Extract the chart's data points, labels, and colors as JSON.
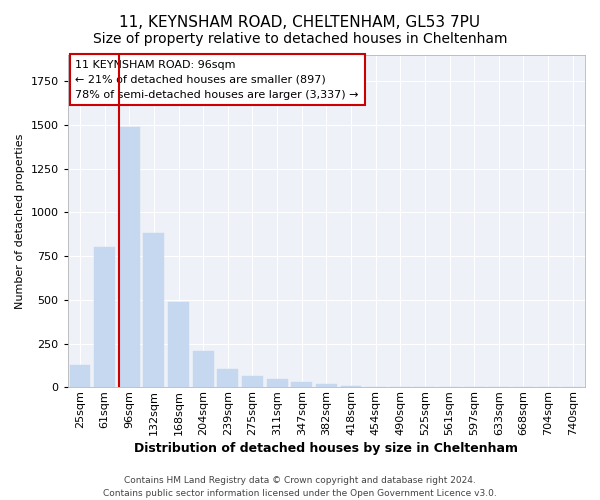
{
  "title1": "11, KEYNSHAM ROAD, CHELTENHAM, GL53 7PU",
  "title2": "Size of property relative to detached houses in Cheltenham",
  "xlabel": "Distribution of detached houses by size in Cheltenham",
  "ylabel": "Number of detached properties",
  "categories": [
    "25sqm",
    "61sqm",
    "96sqm",
    "132sqm",
    "168sqm",
    "204sqm",
    "239sqm",
    "275sqm",
    "311sqm",
    "347sqm",
    "382sqm",
    "418sqm",
    "454sqm",
    "490sqm",
    "525sqm",
    "561sqm",
    "597sqm",
    "633sqm",
    "668sqm",
    "704sqm",
    "740sqm"
  ],
  "values": [
    130,
    800,
    1490,
    880,
    490,
    205,
    105,
    65,
    45,
    30,
    20,
    5,
    2,
    1,
    1,
    0,
    0,
    0,
    0,
    0,
    0
  ],
  "bar_color": "#c5d8f0",
  "bar_edge_color": "#c5d8f0",
  "highlight_bar_index": 2,
  "highlight_color": "#cc0000",
  "annotation_text": "11 KEYNSHAM ROAD: 96sqm\n← 21% of detached houses are smaller (897)\n78% of semi-detached houses are larger (3,337) →",
  "footer": "Contains HM Land Registry data © Crown copyright and database right 2024.\nContains public sector information licensed under the Open Government Licence v3.0.",
  "ylim": [
    0,
    1900
  ],
  "bg_color": "#eef2f8",
  "grid_color": "#ffffff",
  "title1_fontsize": 11,
  "title2_fontsize": 10,
  "xlabel_fontsize": 9,
  "ylabel_fontsize": 8,
  "tick_fontsize": 8,
  "annotation_fontsize": 8,
  "footer_fontsize": 6.5
}
